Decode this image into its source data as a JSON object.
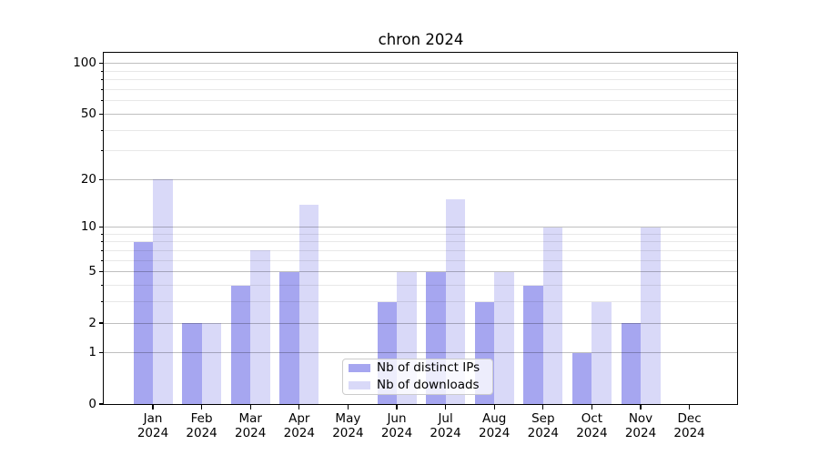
{
  "chart_data": {
    "type": "bar",
    "title": "chron 2024",
    "categories": [
      [
        "Jan",
        "2024"
      ],
      [
        "Feb",
        "2024"
      ],
      [
        "Mar",
        "2024"
      ],
      [
        "Apr",
        "2024"
      ],
      [
        "May",
        "2024"
      ],
      [
        "Jun",
        "2024"
      ],
      [
        "Jul",
        "2024"
      ],
      [
        "Aug",
        "2024"
      ],
      [
        "Sep",
        "2024"
      ],
      [
        "Oct",
        "2024"
      ],
      [
        "Nov",
        "2024"
      ],
      [
        "Dec",
        "2024"
      ]
    ],
    "series": [
      {
        "name": "Nb of distinct IPs",
        "color": "#a6a6f0",
        "values": [
          8,
          2,
          4,
          5,
          0,
          3,
          5,
          3,
          4,
          1,
          2,
          0
        ]
      },
      {
        "name": "Nb of downloads",
        "color": "#d9d9f8",
        "values": [
          20,
          2,
          7,
          14,
          0,
          5,
          15,
          5,
          10,
          3,
          10,
          0
        ]
      }
    ],
    "xlabel": "",
    "ylabel": "",
    "y_axis": {
      "scale": "log1p",
      "ylim": [
        0,
        116
      ],
      "major_ticks": [
        0,
        1,
        2,
        5,
        10,
        20,
        50,
        100
      ],
      "minor_ticks": [
        3,
        4,
        6,
        7,
        8,
        9,
        30,
        40,
        60,
        70,
        80,
        90
      ]
    },
    "grid": true,
    "legend": {
      "position": "lower center"
    }
  },
  "colors": {
    "background": "#ffffff",
    "spine": "#000000",
    "grid_major": "#c4c4c4",
    "grid_minor": "#e8e8e8",
    "legend_border": "#cccccc"
  }
}
